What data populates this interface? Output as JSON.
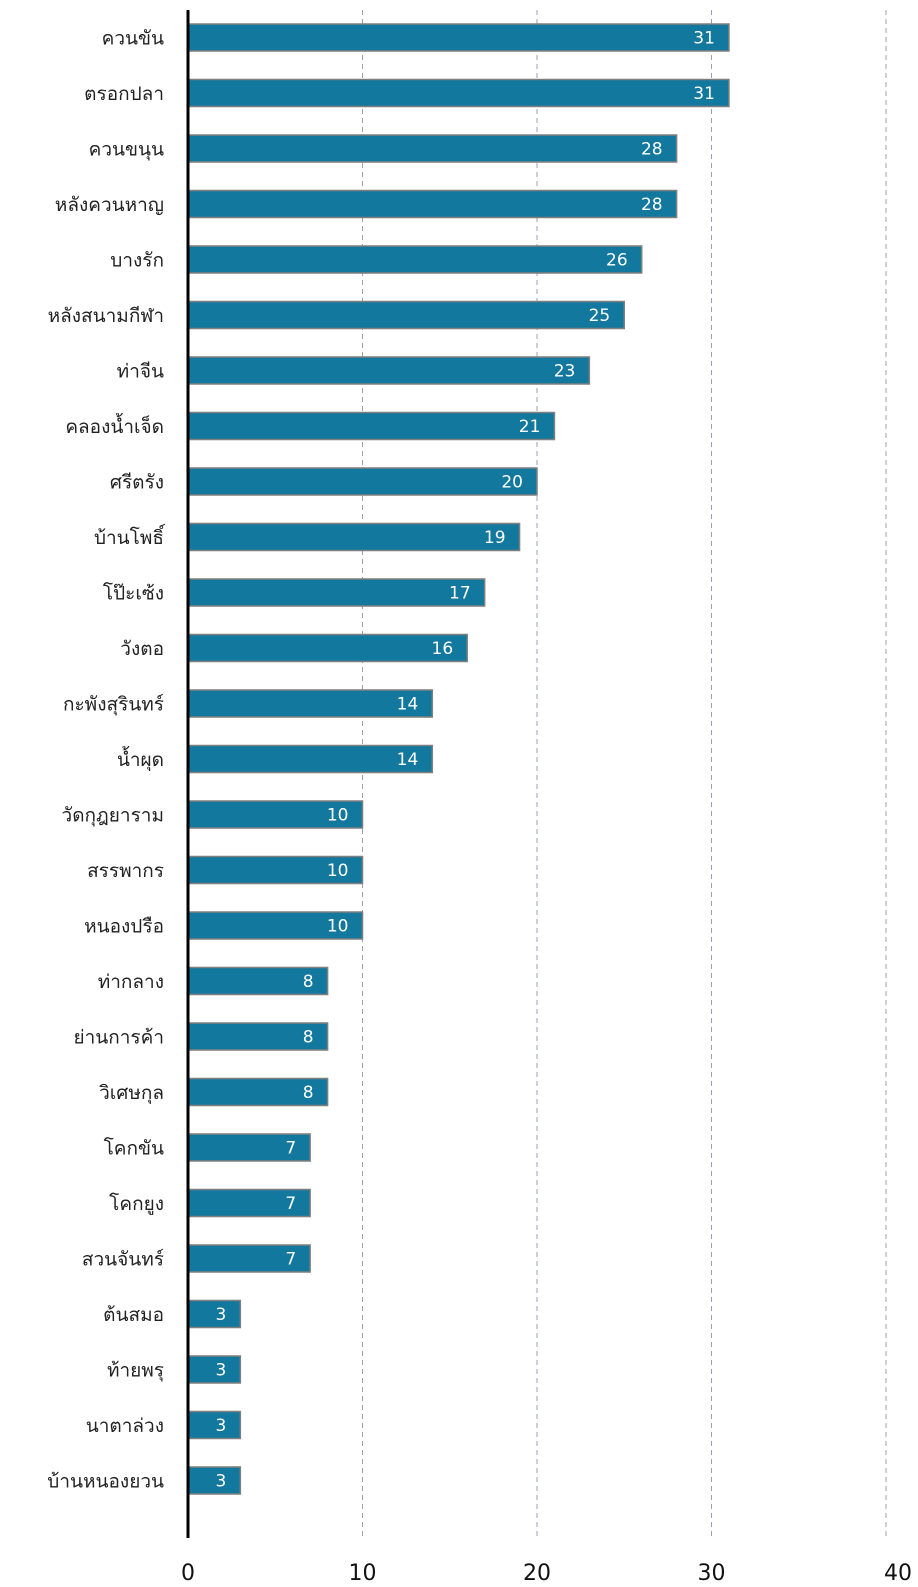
{
  "chart_data": {
    "type": "bar",
    "orientation": "horizontal",
    "categories": [
      "ควนขัน",
      "ตรอกปลา",
      "ควนขนุน",
      "หลังควนหาญ",
      "บางรัก",
      "หลังสนามกีฬา",
      "ท่าจีน",
      "คลองน้ำเจ็ด",
      "ศรีตรัง",
      "บ้านโพธิ์",
      "โป๊ะเซ้ง",
      "วังตอ",
      "กะพังสุรินทร์",
      "น้ำผุด",
      "วัดกุฎยาราม",
      "สรรพากร",
      "หนองปรือ",
      "ท่ากลาง",
      "ย่านการค้า",
      "วิเศษกุล",
      "โคกขัน",
      "โคกยูง",
      "สวนจันทร์",
      "ต้นสมอ",
      "ท้ายพรุ",
      "นาตาล่วง",
      "บ้านหนองยวน"
    ],
    "values": [
      31,
      31,
      28,
      28,
      26,
      25,
      23,
      21,
      20,
      19,
      17,
      16,
      14,
      14,
      10,
      10,
      10,
      8,
      8,
      8,
      7,
      7,
      7,
      3,
      3,
      3,
      3
    ],
    "xlim": [
      0,
      40
    ],
    "xticks": [
      0,
      10,
      20,
      30,
      40
    ],
    "grid": "vertical-dashed",
    "legend": "none",
    "title": "",
    "xlabel": "",
    "ylabel": "",
    "colors": {
      "bar": "#13789e",
      "bar_border": "#7f7f7f",
      "grid": "#9aa0b4",
      "axis": "#000000",
      "value_text": "#ffffff"
    }
  }
}
